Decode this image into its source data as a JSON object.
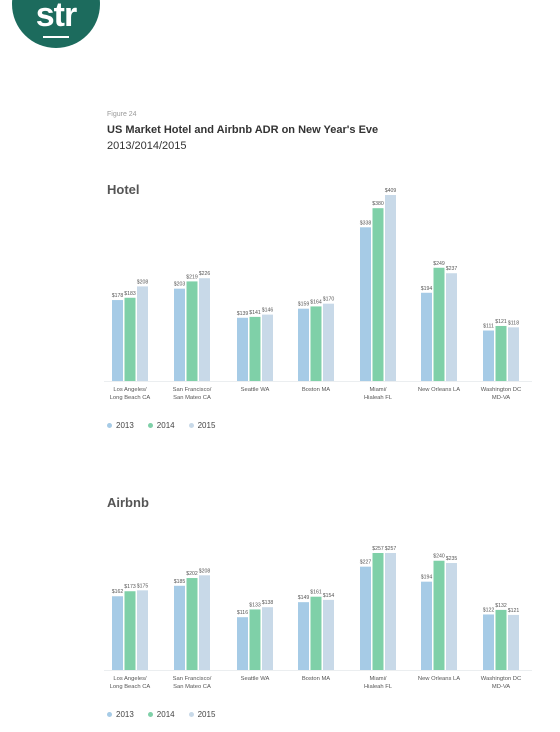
{
  "logo": {
    "text": "str"
  },
  "figure": {
    "label": "Figure 24",
    "title": "US Market Hotel and Airbnb ADR on New Year's Eve",
    "subtitle": "2013/2014/2015"
  },
  "colors": {
    "2013": "#a6cbe6",
    "2014": "#7fd0a8",
    "2015": "#c8d9e8",
    "brand": "#1c6b5d"
  },
  "chart_data": [
    {
      "type": "bar",
      "title": "Hotel",
      "categories": [
        [
          "Los Angeles/",
          "Long Beach CA"
        ],
        [
          "San Francisco/",
          "San Mateo CA"
        ],
        [
          "Seattle WA"
        ],
        [
          "Boston MA"
        ],
        [
          "Miami/",
          "Hialeah FL"
        ],
        [
          "New Orleans LA"
        ],
        [
          "Washington DC",
          "MD-VA"
        ]
      ],
      "series": [
        {
          "name": "2013",
          "values": [
            178,
            203,
            139,
            159,
            338,
            194,
            111
          ],
          "labels": [
            "$178",
            "$203",
            "$139",
            "$159",
            "$338",
            "$194",
            "$111"
          ]
        },
        {
          "name": "2014",
          "values": [
            183,
            219,
            141,
            164,
            380,
            249,
            121
          ],
          "labels": [
            "$183",
            "$219",
            "$141",
            "$164",
            "$380",
            "$249",
            "$121"
          ]
        },
        {
          "name": "2015",
          "values": [
            208,
            226,
            146,
            170,
            409,
            237,
            118
          ],
          "labels": [
            "$208",
            "$226",
            "$146",
            "$170",
            "$409",
            "$237",
            "$118"
          ]
        }
      ],
      "ylim": [
        0,
        409
      ],
      "legend": [
        "2013",
        "2014",
        "2015"
      ],
      "grid": false,
      "legend_placement": "bottom-left"
    },
    {
      "type": "bar",
      "title": "Airbnb",
      "categories": [
        [
          "Los Angeles/",
          "Long Beach CA"
        ],
        [
          "San Francisco/",
          "San Mateo CA"
        ],
        [
          "Seattle WA"
        ],
        [
          "Boston MA"
        ],
        [
          "Miami/",
          "Hialeah FL"
        ],
        [
          "New Orleans LA"
        ],
        [
          "Washington DC",
          "MD-VA"
        ]
      ],
      "series": [
        {
          "name": "2013",
          "values": [
            162,
            185,
            116,
            149,
            227,
            194,
            122
          ],
          "labels": [
            "$162",
            "$185",
            "$116",
            "$149",
            "$227",
            "$194",
            "$122"
          ]
        },
        {
          "name": "2014",
          "values": [
            173,
            202,
            133,
            161,
            257,
            240,
            132
          ],
          "labels": [
            "$173",
            "$202",
            "$133",
            "$161",
            "$257",
            "$240",
            "$132"
          ]
        },
        {
          "name": "2015",
          "values": [
            175,
            208,
            138,
            154,
            257,
            235,
            121
          ],
          "labels": [
            "$175",
            "$208",
            "$138",
            "$154",
            "$257",
            "$235",
            "$121"
          ]
        }
      ],
      "ylim": [
        0,
        257
      ],
      "legend": [
        "2013",
        "2014",
        "2015"
      ],
      "grid": false,
      "legend_placement": "bottom-left"
    }
  ]
}
